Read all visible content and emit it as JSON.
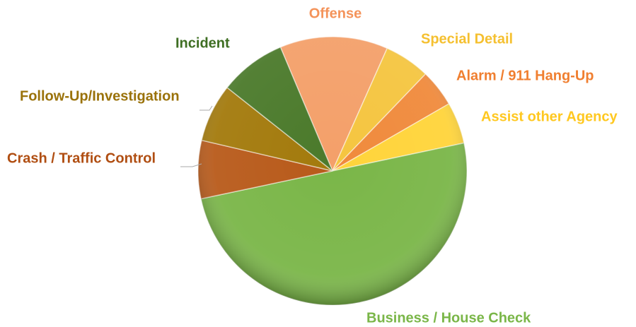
{
  "chart_data": {
    "type": "pie",
    "categories": [
      "Offense",
      "Special Detail",
      "Alarm / 911 Hang-Up",
      "Assist other Agency",
      "Business / House Check",
      "Crash / Traffic Control",
      "Follow-Up/Investigation",
      "Incident"
    ],
    "values": [
      13,
      5.5,
      4.5,
      5,
      50,
      7,
      7,
      8
    ],
    "colors": [
      "#f4a06a",
      "#f5c540",
      "#f08a3c",
      "#ffd43a",
      "#7ab648",
      "#b85a1a",
      "#a37a0c",
      "#4b7a2b"
    ]
  }
}
